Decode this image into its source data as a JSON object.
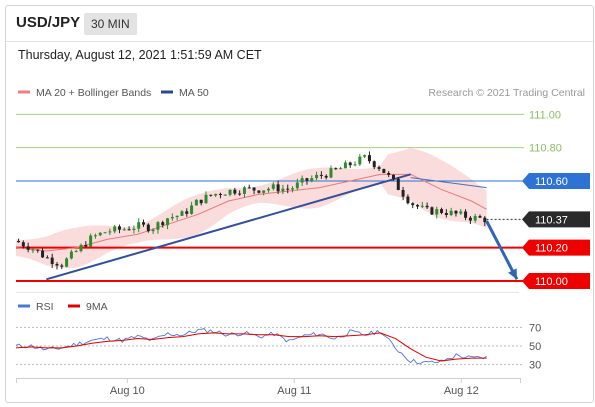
{
  "header": {
    "symbol": "USD/JPY",
    "interval": "30 MIN"
  },
  "datetime": "Thursday, August 12, 2021 1:51:59 AM CET",
  "legend": {
    "ma20": "MA 20 + Bollinger Bands",
    "ma50": "MA 50"
  },
  "credit": "Research © 2021 Trading Central",
  "levels": [
    {
      "value": 111.0,
      "label": "111.00",
      "kind": "target-line",
      "color": "#a8cf84"
    },
    {
      "value": 110.8,
      "label": "110.80",
      "kind": "target-line",
      "color": "#a8cf84"
    },
    {
      "value": 110.6,
      "label": "110.60",
      "kind": "pivot-badge",
      "color": "#2e73d3"
    },
    {
      "value": 110.2,
      "label": "110.20",
      "kind": "support-badge",
      "color": "#ee0000"
    },
    {
      "value": 110.0,
      "label": "110.00",
      "kind": "support-badge",
      "color": "#ee0000"
    }
  ],
  "current_price": "110.37",
  "rsi_legend": {
    "rsi": "RSI",
    "ma": "9MA"
  },
  "rsi_ticks": [
    "70",
    "50",
    "30"
  ],
  "x_ticks": [
    "Aug 10",
    "Aug 11",
    "Aug 12"
  ],
  "chart_data": {
    "type": "candlestick",
    "interval": "30 MIN",
    "ylim": [
      109.97,
      111.05
    ],
    "price": {
      "x": [
        0,
        3,
        6,
        9,
        12,
        15,
        18,
        21,
        24,
        27,
        30,
        33,
        36,
        39,
        42,
        45,
        48,
        51,
        54,
        57,
        60,
        63,
        66,
        69,
        72,
        75,
        78,
        81,
        84,
        87,
        90,
        93
      ],
      "y": [
        110.24,
        110.2,
        110.14,
        110.1,
        110.18,
        110.26,
        110.3,
        110.31,
        110.33,
        110.32,
        110.38,
        110.4,
        110.48,
        110.52,
        110.54,
        110.55,
        110.55,
        110.56,
        110.55,
        110.6,
        110.63,
        110.66,
        110.7,
        110.74,
        110.68,
        110.58,
        110.47,
        110.42,
        110.42,
        110.4,
        110.38,
        110.37
      ]
    },
    "ma20": {
      "x": [
        0,
        6,
        12,
        18,
        24,
        30,
        36,
        42,
        48,
        54,
        60,
        66,
        72,
        78,
        84,
        90,
        93
      ],
      "y": [
        110.2,
        110.18,
        110.2,
        110.25,
        110.28,
        110.34,
        110.4,
        110.48,
        110.52,
        110.54,
        110.56,
        110.6,
        110.64,
        110.64,
        110.55,
        110.48,
        110.43
      ]
    },
    "trendline": {
      "x": [
        6,
        78
      ],
      "y": [
        110.01,
        110.64
      ]
    },
    "ma50": {
      "x": [
        78,
        93
      ],
      "y": [
        110.62,
        110.56
      ]
    },
    "forecast_arrow": {
      "x": [
        93,
        99
      ],
      "y": [
        110.36,
        110.01
      ]
    },
    "rsi": {
      "ylim": [
        20,
        80
      ],
      "x": [
        0,
        3,
        6,
        9,
        12,
        15,
        18,
        21,
        24,
        27,
        30,
        33,
        36,
        39,
        42,
        45,
        48,
        51,
        54,
        57,
        60,
        63,
        66,
        69,
        72,
        75,
        78,
        81,
        84,
        87,
        90,
        93
      ],
      "rsi": [
        50,
        50,
        46,
        48,
        52,
        56,
        58,
        56,
        60,
        56,
        63,
        62,
        67,
        66,
        62,
        64,
        60,
        63,
        55,
        61,
        63,
        58,
        65,
        62,
        66,
        48,
        34,
        32,
        33,
        40,
        37,
        38
      ],
      "ma9": [
        48,
        49,
        48,
        48,
        50,
        53,
        55,
        56,
        58,
        57,
        59,
        60,
        63,
        64,
        63,
        63,
        62,
        62,
        60,
        60,
        61,
        60,
        61,
        62,
        64,
        58,
        47,
        38,
        34,
        36,
        37,
        37
      ]
    }
  }
}
